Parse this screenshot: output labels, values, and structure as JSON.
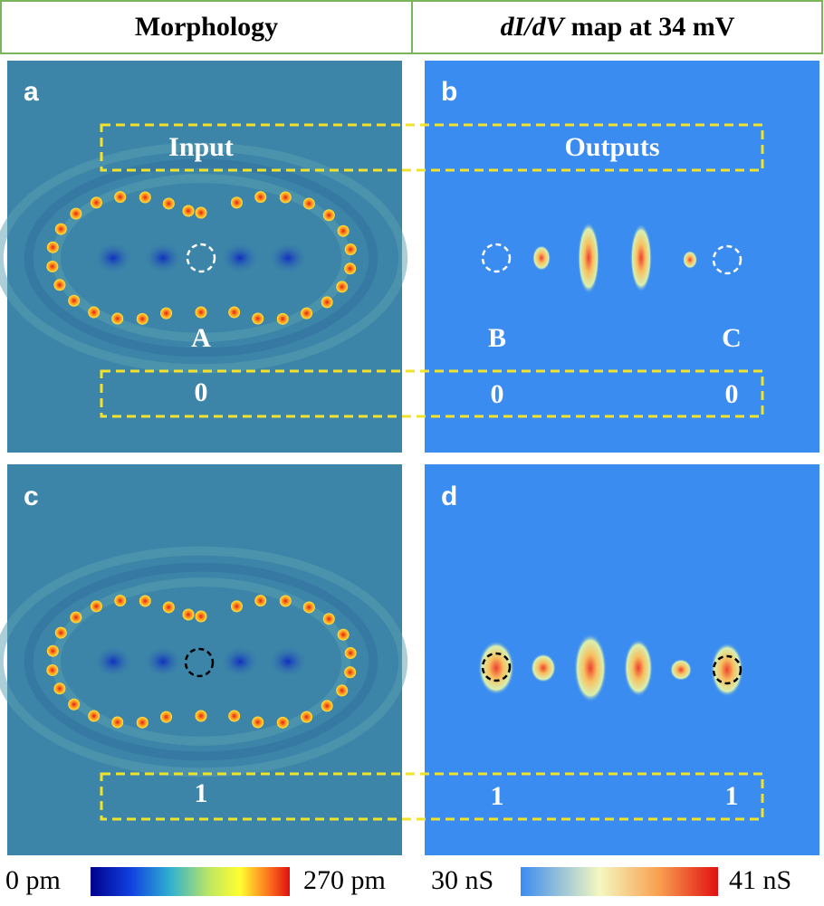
{
  "header": {
    "left": "Morphology",
    "right_italic": "dI/dV",
    "right_rest": "map at 34 mV"
  },
  "panel_labels": [
    "a",
    "b",
    "c",
    "d"
  ],
  "rows": [
    {
      "input_label": "Input",
      "outputs_label": "Outputs",
      "names": [
        "A",
        "B",
        "C"
      ],
      "values": [
        "0",
        "0",
        "0"
      ]
    },
    {
      "values": [
        "1",
        "1",
        "1"
      ]
    }
  ],
  "colorbars": [
    {
      "min": "0 pm",
      "max": "270 pm"
    },
    {
      "min": "30 nS",
      "max": "41 nS"
    }
  ]
}
